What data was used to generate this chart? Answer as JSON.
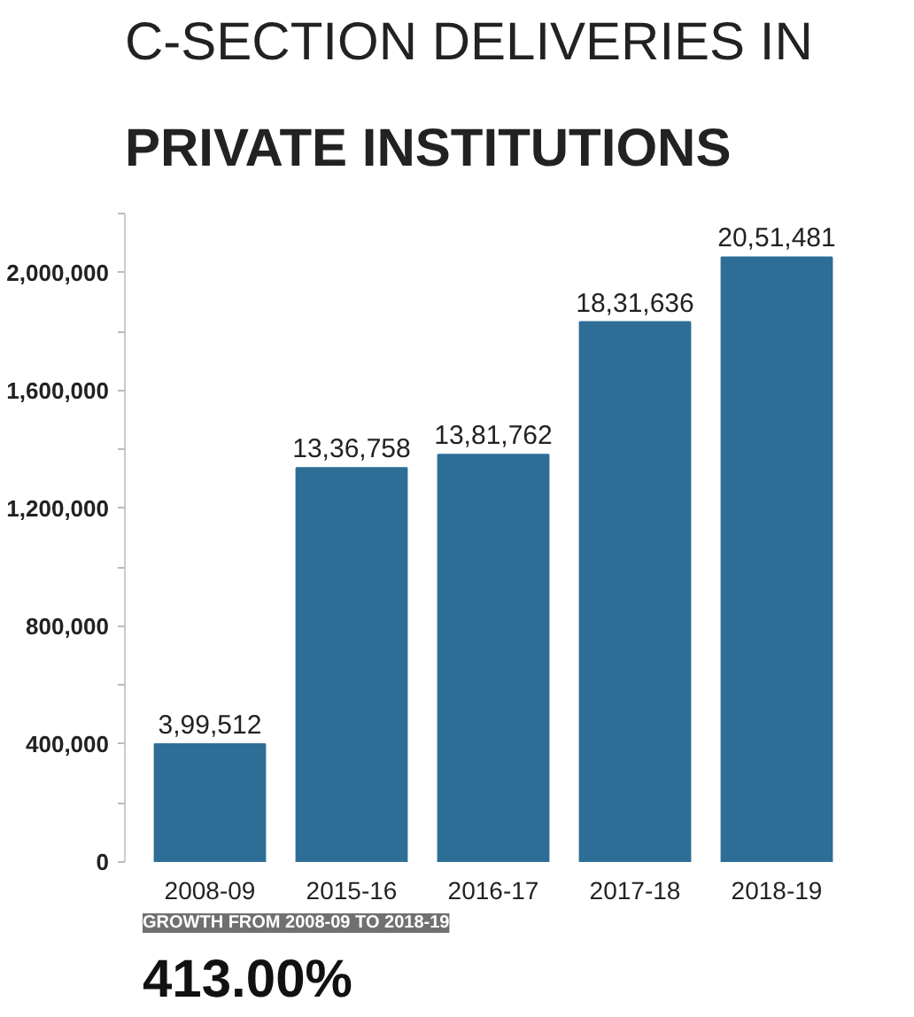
{
  "chart_data": {
    "type": "bar",
    "title": "C-SECTION DELIVERIES IN",
    "subtitle": "PRIVATE INSTITUTIONS",
    "categories": [
      "2008-09",
      "2015-16",
      "2016-17",
      "2017-18",
      "2018-19"
    ],
    "values": [
      399512,
      1336758,
      1381762,
      1831636,
      2051481
    ],
    "value_labels": [
      "3,99,512",
      "13,36,758",
      "13,81,762",
      "18,31,636",
      "20,51,481"
    ],
    "color": "#2e6e96",
    "ylim": [
      0,
      2200000
    ],
    "yticks": [
      0,
      {
        "value": 200000,
        "label": null
      },
      {
        "value": 400000,
        "label": "400,000"
      },
      {
        "value": 600000,
        "label": null
      },
      {
        "value": 800000,
        "label": "800,000"
      },
      {
        "value": 1000000,
        "label": null
      },
      {
        "value": 1200000,
        "label": "1,200,000"
      },
      {
        "value": 1400000,
        "label": null
      },
      {
        "value": 1600000,
        "label": "1,600,000"
      },
      {
        "value": 1800000,
        "label": null
      },
      {
        "value": 2000000,
        "label": "2,000,000"
      },
      {
        "value": 2200000,
        "label": null
      }
    ],
    "grid": false,
    "annotations": [
      "GROWTH FROM 2008-09 TO 2018-19",
      "413.00%"
    ]
  }
}
